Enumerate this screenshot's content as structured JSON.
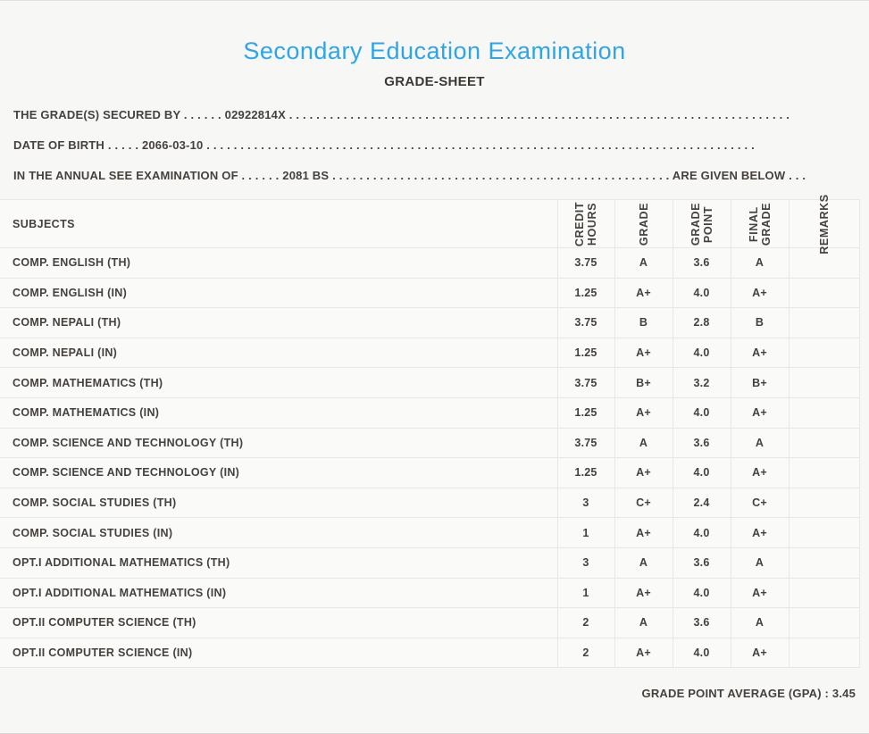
{
  "page": {
    "title": "Secondary Education Examination",
    "subtitle": "GRADE-SHEET",
    "info_lines": {
      "secured_by": "THE GRADE(S) SECURED BY . . . . . . 02922814X . . . . . . . . . . . . . . . . . . . . . . . . . . . . . . . . . . . . . . . . . . . . . . . . . . . . . . . . . . . . . . . . . . . . . . . . . .",
      "date_of_birth": "DATE OF BIRTH . . . . . 2066-03-10 . . . . . . . . . . . . . . . . . . . . . . . . . . . . . . . . . . . . . . . . . . . . . . . . . . . . . . . . . . . . . . . . . . . . . . . . . . . . . . . . .",
      "exam_year": "IN THE ANNUAL SEE EXAMINATION OF . . . . . . 2081 BS . . . . . . . . . . . . . . . . . . . . . . . . . . . . . . . . . . . . . . . . . . . . . . . . . . ARE GIVEN BELOW . . ."
    }
  },
  "table": {
    "headers": {
      "subjects": "SUBJECTS",
      "credit_hours": "CREDIT\nHOURS",
      "grade": "GRADE",
      "grade_point": "GRADE\nPOINT",
      "final_grade": "FINAL\nGRADE",
      "remarks": "REMARKS"
    },
    "rows": [
      {
        "subject": "COMP. ENGLISH (TH)",
        "credit_hours": "3.75",
        "grade": "A",
        "grade_point": "3.6",
        "final_grade": "A",
        "remarks": ""
      },
      {
        "subject": "COMP. ENGLISH (IN)",
        "credit_hours": "1.25",
        "grade": "A+",
        "grade_point": "4.0",
        "final_grade": "A+",
        "remarks": ""
      },
      {
        "subject": "COMP. NEPALI (TH)",
        "credit_hours": "3.75",
        "grade": "B",
        "grade_point": "2.8",
        "final_grade": "B",
        "remarks": ""
      },
      {
        "subject": "COMP. NEPALI (IN)",
        "credit_hours": "1.25",
        "grade": "A+",
        "grade_point": "4.0",
        "final_grade": "A+",
        "remarks": ""
      },
      {
        "subject": "COMP. MATHEMATICS (TH)",
        "credit_hours": "3.75",
        "grade": "B+",
        "grade_point": "3.2",
        "final_grade": "B+",
        "remarks": ""
      },
      {
        "subject": "COMP. MATHEMATICS (IN)",
        "credit_hours": "1.25",
        "grade": "A+",
        "grade_point": "4.0",
        "final_grade": "A+",
        "remarks": ""
      },
      {
        "subject": "COMP. SCIENCE AND TECHNOLOGY (TH)",
        "credit_hours": "3.75",
        "grade": "A",
        "grade_point": "3.6",
        "final_grade": "A",
        "remarks": ""
      },
      {
        "subject": "COMP. SCIENCE AND TECHNOLOGY (IN)",
        "credit_hours": "1.25",
        "grade": "A+",
        "grade_point": "4.0",
        "final_grade": "A+",
        "remarks": ""
      },
      {
        "subject": "COMP. SOCIAL STUDIES (TH)",
        "credit_hours": "3",
        "grade": "C+",
        "grade_point": "2.4",
        "final_grade": "C+",
        "remarks": ""
      },
      {
        "subject": "COMP. SOCIAL STUDIES (IN)",
        "credit_hours": "1",
        "grade": "A+",
        "grade_point": "4.0",
        "final_grade": "A+",
        "remarks": ""
      },
      {
        "subject": "OPT.I ADDITIONAL MATHEMATICS (TH)",
        "credit_hours": "3",
        "grade": "A",
        "grade_point": "3.6",
        "final_grade": "A",
        "remarks": ""
      },
      {
        "subject": "OPT.I ADDITIONAL MATHEMATICS (IN)",
        "credit_hours": "1",
        "grade": "A+",
        "grade_point": "4.0",
        "final_grade": "A+",
        "remarks": ""
      },
      {
        "subject": "OPT.II COMPUTER SCIENCE (TH)",
        "credit_hours": "2",
        "grade": "A",
        "grade_point": "3.6",
        "final_grade": "A",
        "remarks": ""
      },
      {
        "subject": "OPT.II COMPUTER SCIENCE (IN)",
        "credit_hours": "2",
        "grade": "A+",
        "grade_point": "4.0",
        "final_grade": "A+",
        "remarks": ""
      }
    ],
    "footer": {
      "gpa_text": "GRADE POINT AVERAGE (GPA) : 3.45"
    }
  },
  "colors": {
    "title_blue": "#2ea5e9",
    "text_color": "#45413e",
    "page_bg": "#f7f7f6",
    "cell_bg": "#fafaf9",
    "border_color": "#e9e7e4"
  }
}
